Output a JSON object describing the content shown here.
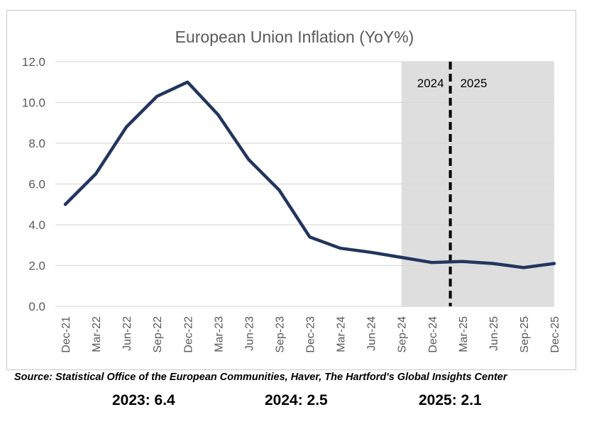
{
  "chart_data": {
    "type": "line",
    "title": "European Union Inflation (YoY%)",
    "xlabel": "",
    "ylabel": "",
    "ylim": [
      0,
      12
    ],
    "y_ticks": [
      "0.0",
      "2.0",
      "4.0",
      "6.0",
      "8.0",
      "10.0",
      "12.0"
    ],
    "x_tick_labels": [
      "Dec-21",
      "Mar-22",
      "Jun-22",
      "Sep-22",
      "Dec-22",
      "Mar-23",
      "Jun-23",
      "Sep-23",
      "Dec-23",
      "Mar-24",
      "Jun-24",
      "Sep-24",
      "Dec-24",
      "Mar-25",
      "Jun-25",
      "Sep-25",
      "Dec-25"
    ],
    "grid": true,
    "series": [
      {
        "name": "",
        "color": "#22355e",
        "x": [
          "Dec-21",
          "Mar-22",
          "Jun-22",
          "Sep-22",
          "Dec-22",
          "Mar-23",
          "Jun-23",
          "Sep-23",
          "Dec-23",
          "Mar-24",
          "Jun-24",
          "Sep-24",
          "Dec-24",
          "Mar-25",
          "Jun-25",
          "Sep-25",
          "Dec-25"
        ],
        "values": [
          5.0,
          6.5,
          8.8,
          10.3,
          11.0,
          9.4,
          7.2,
          5.7,
          3.4,
          2.85,
          2.65,
          2.4,
          2.15,
          2.2,
          2.1,
          1.9,
          2.1
        ]
      }
    ],
    "shaded_region": {
      "from": "Sep-24",
      "to": "Dec-25",
      "color": "#dedede"
    },
    "divider": {
      "at_index": 12.6,
      "left_label": "2024",
      "right_label": "2025"
    }
  },
  "source_text": "Source: Statistical Office of the European Communities, Haver, The Hartford's Global Insights Center",
  "summary": [
    {
      "label": "2023: 6.4"
    },
    {
      "label": "2024: 2.5"
    },
    {
      "label": "2025: 2.1"
    }
  ],
  "colors": {
    "line": "#22355e",
    "shade": "#dedede",
    "grid": "#d9d9d9",
    "axis_text": "#595959"
  }
}
